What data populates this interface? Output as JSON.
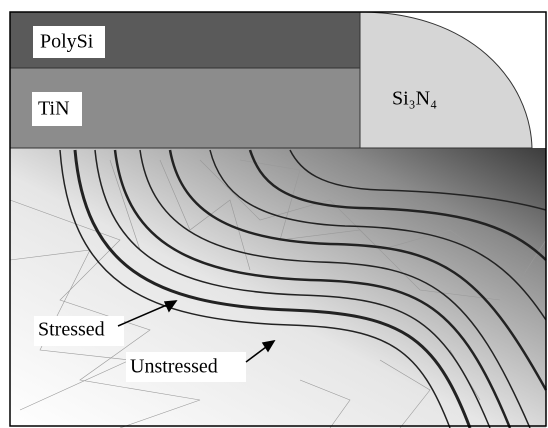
{
  "labels": {
    "polysi": "PolySi",
    "tin": "TiN",
    "si3n4": "Si₃N₄",
    "stressed": "Stressed",
    "unstressed": "Unstressed"
  }
}
